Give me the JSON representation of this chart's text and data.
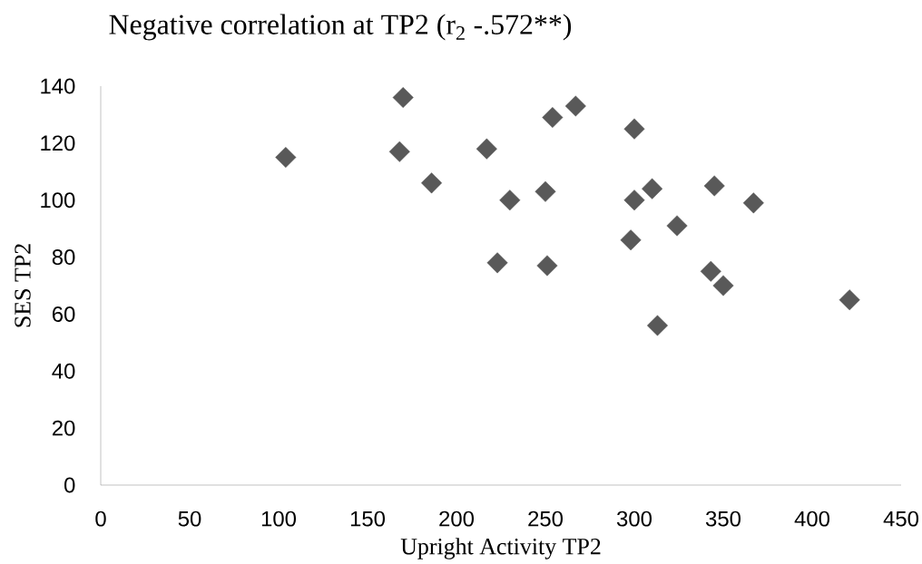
{
  "chart_data": {
    "type": "scatter",
    "title": "Negative correlation at TP2 (r$_{2}$ -.572**)",
    "xlabel": "Upright Activity TP2",
    "ylabel": "SES TP2",
    "marker": "diamond",
    "grid": false,
    "series": [
      {
        "color": "#595959",
        "x": [
          104,
          168,
          170,
          186,
          217,
          223,
          230,
          250,
          251,
          254,
          267,
          298,
          300,
          300,
          310,
          313,
          324,
          343,
          345,
          350,
          367,
          421
        ],
        "values": [
          115,
          117,
          136,
          106,
          118,
          78,
          100,
          103,
          77,
          129,
          133,
          86,
          125,
          100,
          104,
          56,
          91,
          75,
          105,
          70,
          99,
          65
        ]
      }
    ],
    "xlim": [
      0,
      450
    ],
    "xticks": [
      0,
      50,
      100,
      150,
      200,
      250,
      300,
      350,
      400,
      450
    ],
    "ylim": [
      0,
      140
    ],
    "yticks": [
      0,
      20,
      40,
      60,
      80,
      100,
      120,
      140
    ]
  }
}
